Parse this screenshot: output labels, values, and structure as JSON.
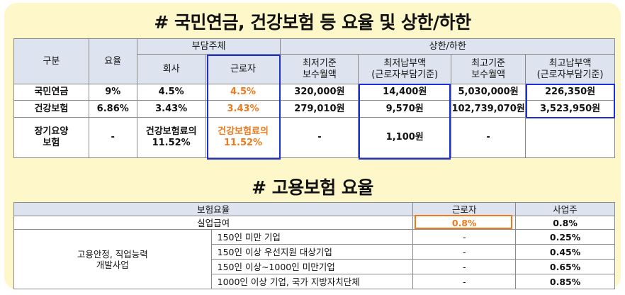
{
  "title_main": "# 국민연금, 건강보험 등 요율 및 상한/하한",
  "title_sub": "# 고용보험 요율",
  "table1": {
    "headers": {
      "category": "구분",
      "rate": "요율",
      "burden": "부담주체",
      "company": "회사",
      "worker": "근로자",
      "limits": "상한/하한",
      "min_base": "최저기준\n보수월액",
      "min_pay": "최저납부액\n(근로자부담기준)",
      "max_base": "최고기준\n보수월액",
      "max_pay": "최고납부액\n(근로자부담기준)"
    },
    "rows": [
      {
        "name": "국민연금",
        "rate": "9%",
        "company": "4.5%",
        "worker": "4.5%",
        "min_base": "320,000원",
        "min_pay": "14,400원",
        "max_base": "5,030,000원",
        "max_pay": "226,350원"
      },
      {
        "name": "건강보험",
        "rate": "6.86%",
        "company": "3.43%",
        "worker": "3.43%",
        "min_base": "279,010원",
        "min_pay": "9,570원",
        "max_base": "102,739,070원",
        "max_pay": "3,523,950원"
      },
      {
        "name": "장기요양\n보험",
        "rate": "-",
        "company": "건강보험료의\n11.52%",
        "worker": "건강보험료의\n11.52%",
        "min_base": "-",
        "min_pay": "1,100원",
        "max_base": "-",
        "max_pay": ""
      }
    ]
  },
  "table2": {
    "headers": {
      "rate": "보험요율",
      "worker": "근로자",
      "employer": "사업주"
    },
    "unemployment": {
      "label": "실업급여",
      "worker": "0.8%",
      "employer": "0.8%"
    },
    "stability": {
      "label": "고용안정, 직업능력\n개발사업",
      "rows": [
        {
          "label": "150인 미만 기업",
          "worker": "-",
          "employer": "0.25%"
        },
        {
          "label": "150인 이상 우선지원 대상기업",
          "worker": "-",
          "employer": "0.45%"
        },
        {
          "label": "150인 이상~1000인 미만기업",
          "worker": "-",
          "employer": "0.65%"
        },
        {
          "label": "1000인 이상 기업, 국가 지방자치단체",
          "worker": "-",
          "employer": "0.85%"
        }
      ]
    }
  },
  "colors": {
    "highlight_blue": "#1f2fd6",
    "highlight_orange": "#ee7a1c",
    "header_bg": "#dde4ef",
    "card_bg": "#fdf7c9"
  }
}
